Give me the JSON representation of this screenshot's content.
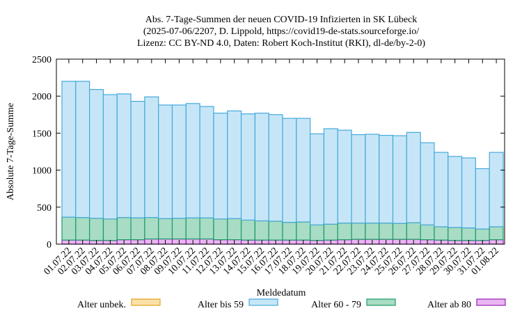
{
  "chart_data": {
    "type": "bar",
    "stacked": true,
    "title_lines": [
      "Abs. 7-Tage-Summen der neuen COVID-19 Infizierten in SK Lübeck",
      "(2025-07-06/2207, D. Lippold, https://covid19-de-stats.sourceforge.io/",
      "Lizenz: CC BY-ND 4.0, Daten: Robert Koch-Institut (RKI), dl-de/by-2-0)"
    ],
    "xlabel": "Meldedatum",
    "ylabel": "Absolute 7-Tage-Summe",
    "ylim": [
      0,
      2500
    ],
    "yticks": [
      0,
      500,
      1000,
      1500,
      2000,
      2500
    ],
    "grid": false,
    "legend_position": "bottom",
    "categories": [
      "01.07.22",
      "02.07.22",
      "03.07.22",
      "04.07.22",
      "05.07.22",
      "06.07.22",
      "07.07.22",
      "08.07.22",
      "09.07.22",
      "10.07.22",
      "11.07.22",
      "12.07.22",
      "13.07.22",
      "14.07.22",
      "15.07.22",
      "16.07.22",
      "17.07.22",
      "18.07.22",
      "19.07.22",
      "20.07.22",
      "21.07.22",
      "22.07.22",
      "23.07.22",
      "24.07.22",
      "25.07.22",
      "26.07.22",
      "27.07.22",
      "28.07.22",
      "29.07.22",
      "30.07.22",
      "31.07.22",
      "01.08.22"
    ],
    "series": [
      {
        "name": "Alter unbek.",
        "fill": "#fbe0a8",
        "stroke": "#e6a21c",
        "values": [
          0,
          0,
          0,
          0,
          0,
          0,
          0,
          0,
          0,
          0,
          0,
          0,
          0,
          0,
          0,
          0,
          0,
          0,
          0,
          0,
          0,
          0,
          0,
          0,
          0,
          0,
          0,
          0,
          0,
          0,
          0,
          0
        ]
      },
      {
        "name": "Alter ab 80",
        "fill": "#e8b6f0",
        "stroke": "#9a1fb8",
        "values": [
          55,
          55,
          50,
          50,
          60,
          60,
          70,
          70,
          70,
          70,
          70,
          60,
          60,
          55,
          55,
          55,
          55,
          55,
          50,
          55,
          60,
          65,
          65,
          65,
          65,
          65,
          60,
          55,
          50,
          50,
          50,
          60
        ]
      },
      {
        "name": "Alter 60 - 79",
        "fill": "#a8dcc4",
        "stroke": "#1d9a66",
        "values": [
          310,
          305,
          300,
          290,
          300,
          295,
          290,
          275,
          280,
          285,
          285,
          280,
          285,
          270,
          260,
          255,
          240,
          245,
          210,
          215,
          225,
          220,
          220,
          220,
          215,
          225,
          200,
          180,
          175,
          170,
          155,
          175
        ]
      },
      {
        "name": "Alter bis 59",
        "fill": "#c6e6f8",
        "stroke": "#45a9da",
        "values": [
          1835,
          1840,
          1740,
          1680,
          1670,
          1575,
          1630,
          1535,
          1530,
          1545,
          1505,
          1430,
          1455,
          1435,
          1455,
          1440,
          1405,
          1400,
          1230,
          1290,
          1255,
          1195,
          1200,
          1185,
          1185,
          1220,
          1110,
          1005,
          960,
          945,
          815,
          1005
        ]
      }
    ],
    "totals": [
      2200,
      2200,
      2090,
      2020,
      2030,
      1930,
      1990,
      1880,
      1880,
      1900,
      1860,
      1770,
      1800,
      1760,
      1770,
      1750,
      1700,
      1700,
      1490,
      1560,
      1540,
      1480,
      1485,
      1470,
      1465,
      1510,
      1370,
      1240,
      1185,
      1165,
      1020,
      1240
    ]
  }
}
